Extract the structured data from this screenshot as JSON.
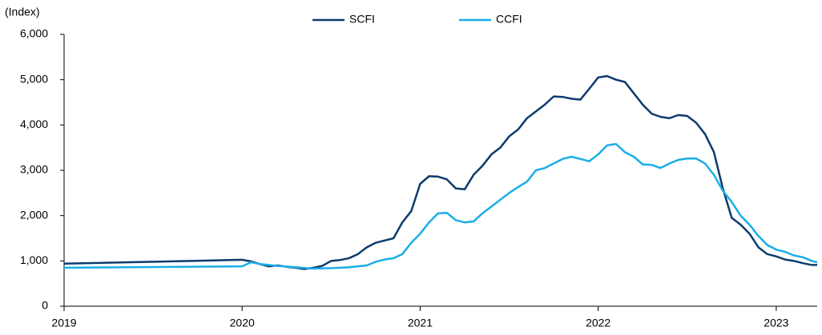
{
  "chart_data": {
    "type": "line",
    "y_label": "(Index)",
    "x": [
      2019,
      2020,
      2020.05,
      2020.1,
      2020.15,
      2020.2,
      2020.25,
      2020.3,
      2020.35,
      2020.4,
      2020.45,
      2020.5,
      2020.55,
      2020.6,
      2020.65,
      2020.7,
      2020.75,
      2020.8,
      2020.85,
      2020.9,
      2020.95,
      2021,
      2021.05,
      2021.1,
      2021.15,
      2021.2,
      2021.25,
      2021.3,
      2021.35,
      2021.4,
      2021.45,
      2021.5,
      2021.55,
      2021.6,
      2021.65,
      2021.7,
      2021.75,
      2021.8,
      2021.85,
      2021.9,
      2021.95,
      2022,
      2022.05,
      2022.1,
      2022.15,
      2022.2,
      2022.25,
      2022.3,
      2022.35,
      2022.4,
      2022.45,
      2022.5,
      2022.55,
      2022.6,
      2022.65,
      2022.7,
      2022.75,
      2022.8,
      2022.85,
      2022.9,
      2022.95,
      2023,
      2023.05,
      2023.1,
      2023.15,
      2023.2,
      2023.23
    ],
    "series": [
      {
        "name": "SCFI",
        "color": "#0d3b6e",
        "values": [
          940,
          1025,
          990,
          930,
          880,
          900,
          870,
          850,
          820,
          850,
          890,
          1000,
          1020,
          1060,
          1150,
          1300,
          1400,
          1450,
          1500,
          1850,
          2100,
          2700,
          2870,
          2860,
          2800,
          2600,
          2580,
          2900,
          3100,
          3350,
          3500,
          3750,
          3900,
          4150,
          4300,
          4450,
          4630,
          4620,
          4580,
          4560,
          4800,
          5050,
          5080,
          5000,
          4950,
          4700,
          4450,
          4250,
          4180,
          4150,
          4220,
          4200,
          4050,
          3800,
          3400,
          2600,
          1950,
          1800,
          1600,
          1300,
          1150,
          1100,
          1030,
          1000,
          950,
          910,
          910
        ]
      },
      {
        "name": "CCFI",
        "color": "#1aaee8",
        "values": [
          850,
          880,
          970,
          930,
          910,
          890,
          875,
          860,
          845,
          830,
          835,
          840,
          850,
          860,
          880,
          900,
          980,
          1030,
          1060,
          1150,
          1400,
          1600,
          1850,
          2050,
          2060,
          1900,
          1850,
          1870,
          2050,
          2200,
          2350,
          2500,
          2630,
          2750,
          3000,
          3050,
          3150,
          3250,
          3300,
          3250,
          3200,
          3350,
          3550,
          3580,
          3400,
          3300,
          3130,
          3120,
          3050,
          3150,
          3230,
          3260,
          3260,
          3150,
          2900,
          2550,
          2300,
          2000,
          1800,
          1550,
          1350,
          1250,
          1200,
          1120,
          1080,
          1000,
          970
        ]
      }
    ],
    "xlim": [
      2019,
      2023.23
    ],
    "xticks": [
      2019,
      2020,
      2021,
      2022,
      2023
    ],
    "ylim": [
      0,
      6000
    ],
    "yticks": [
      0,
      {
        "value": 1000,
        "label": "1,000"
      },
      {
        "value": 2000,
        "label": "2,000"
      },
      {
        "value": 3000,
        "label": "3,000"
      },
      {
        "value": 4000,
        "label": "4,000"
      },
      {
        "value": 5000,
        "label": "5,000"
      },
      {
        "value": 6000,
        "label": "6,000"
      }
    ],
    "grid": false,
    "legend": "top"
  }
}
